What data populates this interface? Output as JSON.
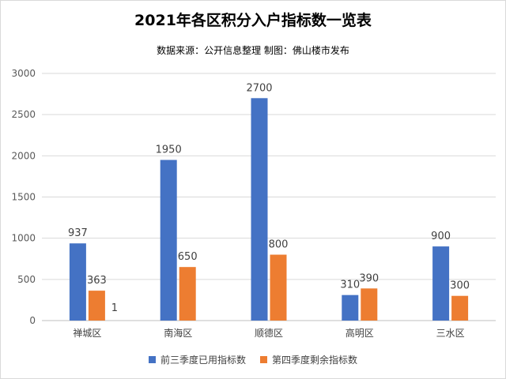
{
  "chart_data": {
    "type": "bar",
    "title": "2021年各区积分入户指标数一览表",
    "subtitle": "数据来源：公开信息整理 制图：佛山楼市发布",
    "categories": [
      "禅城区",
      "南海区",
      "顺德区",
      "高明区",
      "三水区"
    ],
    "series": [
      {
        "name": "前三季度已用指标数",
        "color": "#4472c4",
        "values": [
          937,
          1950,
          2700,
          310,
          900
        ]
      },
      {
        "name": "第四季度剩余指标数",
        "color": "#ed7d31",
        "values": [
          363,
          650,
          800,
          390,
          300
        ]
      }
    ],
    "extra_label": "1",
    "ylim": [
      0,
      3000
    ],
    "yticks": [
      0,
      500,
      1000,
      1500,
      2000,
      2500,
      3000
    ],
    "grid": true,
    "legend_position": "bottom",
    "xlabel": "",
    "ylabel": ""
  }
}
